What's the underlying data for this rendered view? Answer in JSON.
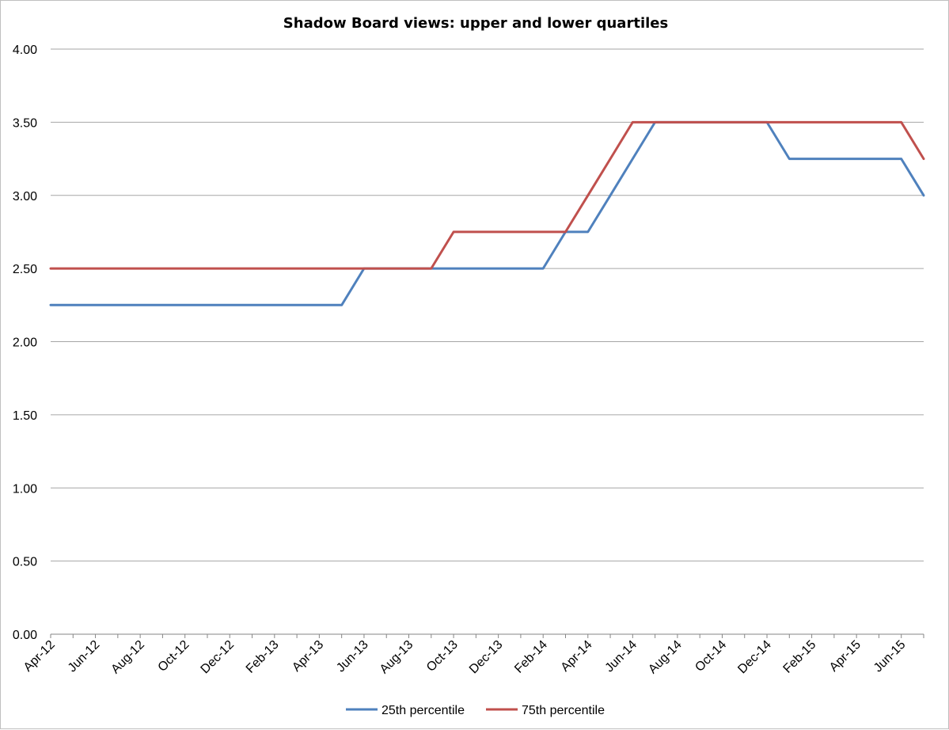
{
  "chart_data": {
    "type": "line",
    "title": "Shadow Board views: upper and lower quartiles",
    "xlabel": "",
    "ylabel": "",
    "ylim": [
      0,
      4
    ],
    "y_ticks": [
      "0.00",
      "0.50",
      "1.00",
      "1.50",
      "2.00",
      "2.50",
      "3.00",
      "3.50",
      "4.00"
    ],
    "x": [
      "Apr-12",
      "May-12",
      "Jun-12",
      "Jul-12",
      "Aug-12",
      "Sep-12",
      "Oct-12",
      "Nov-12",
      "Dec-12",
      "Jan-13",
      "Feb-13",
      "Mar-13",
      "Apr-13",
      "May-13",
      "Jun-13",
      "Jul-13",
      "Aug-13",
      "Sep-13",
      "Oct-13",
      "Nov-13",
      "Dec-13",
      "Jan-14",
      "Feb-14",
      "Mar-14",
      "Apr-14",
      "May-14",
      "Jun-14",
      "Jul-14",
      "Aug-14",
      "Sep-14",
      "Oct-14",
      "Nov-14",
      "Dec-14",
      "Jan-15",
      "Feb-15",
      "Mar-15",
      "Apr-15",
      "May-15",
      "Jun-15",
      "Jul-15"
    ],
    "x_tick_labels": [
      "Apr-12",
      "Jun-12",
      "Aug-12",
      "Oct-12",
      "Dec-12",
      "Feb-13",
      "Apr-13",
      "Jun-13",
      "Aug-13",
      "Oct-13",
      "Dec-13",
      "Feb-14",
      "Apr-14",
      "Jun-14",
      "Aug-14",
      "Oct-14",
      "Dec-14",
      "Feb-15",
      "Apr-15",
      "Jun-15"
    ],
    "series": [
      {
        "name": "25th percentile",
        "color": "#4f81bd",
        "values": [
          2.25,
          2.25,
          2.25,
          2.25,
          2.25,
          2.25,
          2.25,
          2.25,
          2.25,
          2.25,
          2.25,
          2.25,
          2.25,
          2.25,
          2.5,
          2.5,
          2.5,
          2.5,
          2.5,
          2.5,
          2.5,
          2.5,
          2.5,
          2.75,
          2.75,
          3.0,
          3.25,
          3.5,
          3.5,
          3.5,
          3.5,
          3.5,
          3.5,
          3.25,
          3.25,
          3.25,
          3.25,
          3.25,
          3.25,
          3.0
        ]
      },
      {
        "name": "75th percentile",
        "color": "#c0504d",
        "values": [
          2.5,
          2.5,
          2.5,
          2.5,
          2.5,
          2.5,
          2.5,
          2.5,
          2.5,
          2.5,
          2.5,
          2.5,
          2.5,
          2.5,
          2.5,
          2.5,
          2.5,
          2.5,
          2.75,
          2.75,
          2.75,
          2.75,
          2.75,
          2.75,
          3.0,
          3.25,
          3.5,
          3.5,
          3.5,
          3.5,
          3.5,
          3.5,
          3.5,
          3.5,
          3.5,
          3.5,
          3.5,
          3.5,
          3.5,
          3.25
        ]
      }
    ],
    "grid": true,
    "legend_position": "bottom"
  }
}
